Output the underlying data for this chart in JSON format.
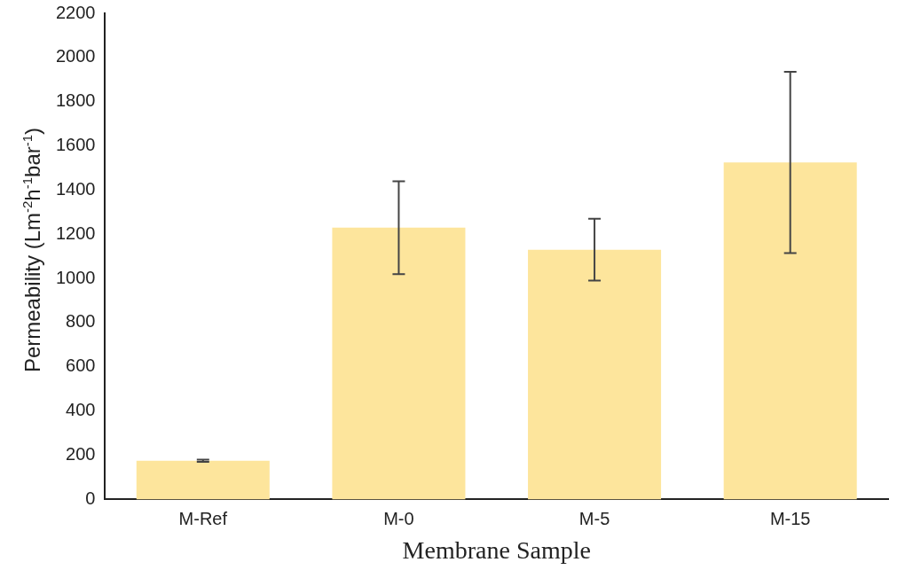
{
  "chart_data": {
    "type": "bar",
    "xlabel": "Membrane Sample",
    "ylabel": "Permeability (Lm$^{-2}$h$^{-1}$bar$^{-1}$)",
    "categories": [
      "M-Ref",
      "M-0",
      "M-5",
      "M-15"
    ],
    "values": [
      175,
      1230,
      1130,
      1525
    ],
    "errors": [
      5,
      210,
      140,
      410
    ],
    "color": "#fde59c",
    "ylim": [
      0,
      2200
    ],
    "yticks": [
      0,
      200,
      400,
      600,
      800,
      1000,
      1200,
      1400,
      1600,
      1800,
      2000,
      2200
    ],
    "grid": false,
    "legend": false
  }
}
